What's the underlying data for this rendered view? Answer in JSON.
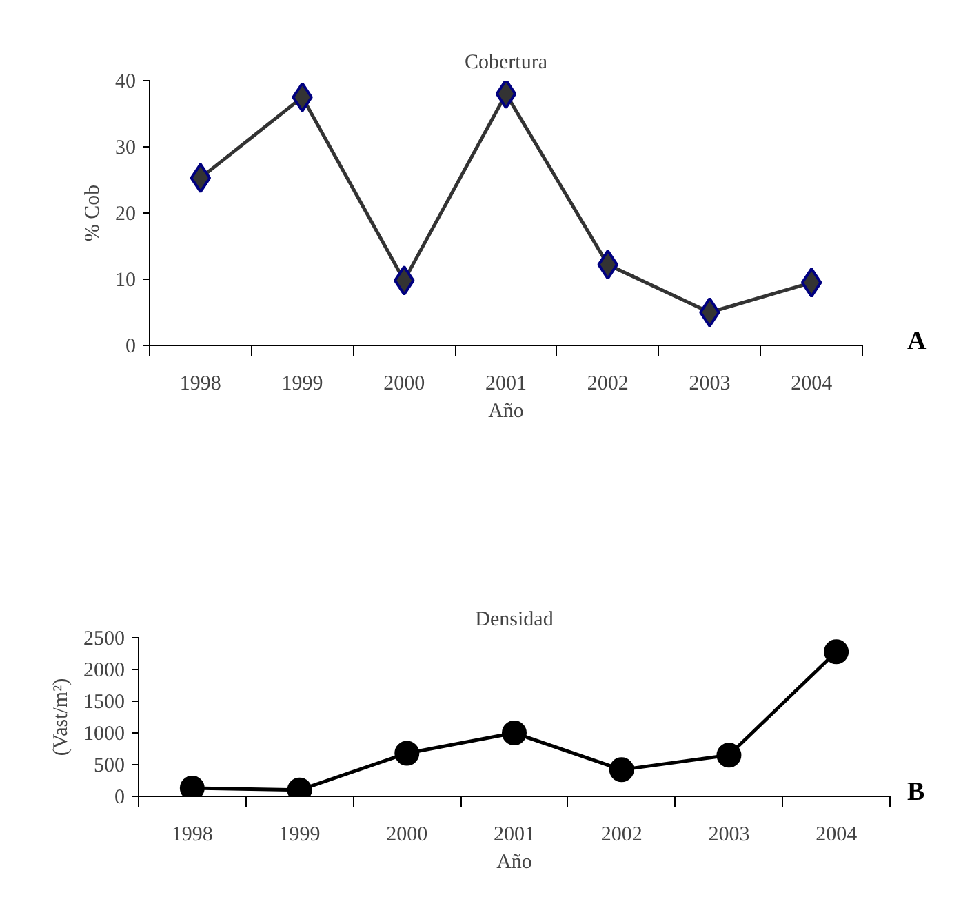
{
  "chart_data": [
    {
      "type": "line",
      "title": "Cobertura",
      "xlabel": "Año",
      "ylabel": "% Cob",
      "categories": [
        "1998",
        "1999",
        "2000",
        "2001",
        "2002",
        "2003",
        "2004"
      ],
      "series": [
        {
          "color": "#333333",
          "values": [
            25.3,
            37.5,
            9.8,
            38,
            12.2,
            5,
            9.5
          ]
        }
      ],
      "ylim": [
        0,
        40
      ],
      "yticks": [
        0,
        10,
        20,
        30,
        40
      ],
      "marker": "diamond",
      "annotations": [
        "A"
      ]
    },
    {
      "type": "line",
      "title": "Densidad",
      "xlabel": "Año",
      "ylabel": "(Vast/m²)",
      "categories": [
        "1998",
        "1999",
        "2000",
        "2001",
        "2002",
        "2003",
        "2004"
      ],
      "series": [
        {
          "color": "#000000",
          "values": [
            130,
            100,
            680,
            1000,
            420,
            650,
            2280
          ]
        }
      ],
      "ylim": [
        0,
        2500
      ],
      "yticks": [
        0,
        500,
        1000,
        1500,
        2000,
        2500
      ],
      "marker": "circle",
      "annotations": [
        "B"
      ]
    }
  ]
}
